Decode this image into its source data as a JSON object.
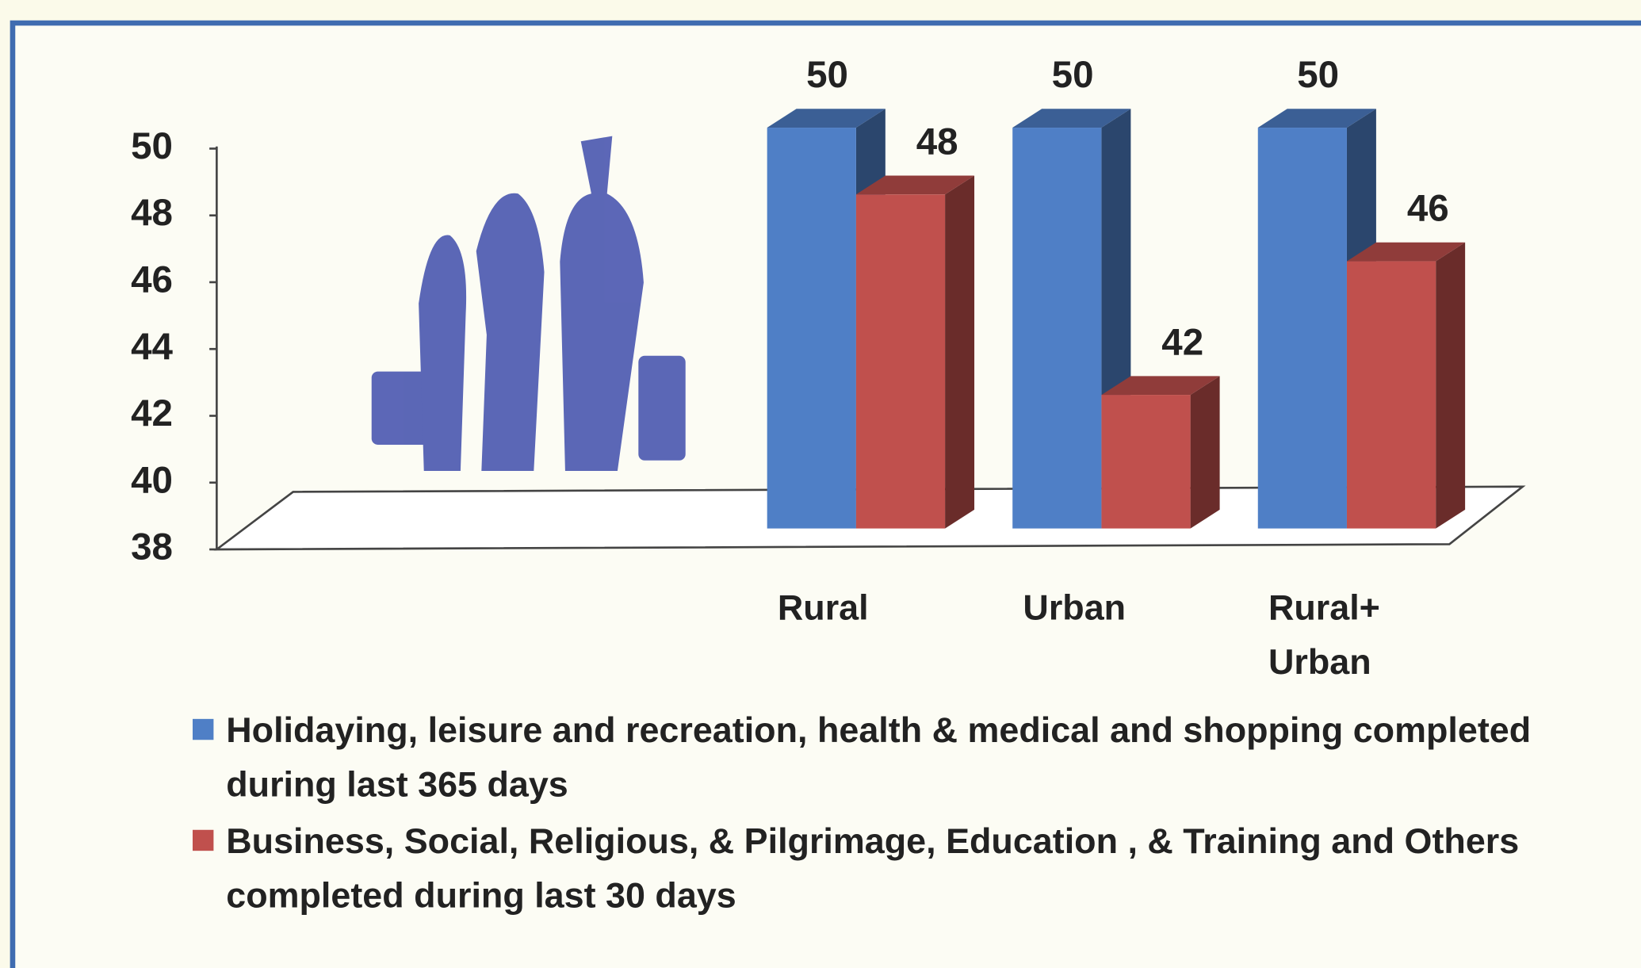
{
  "chart_data": {
    "type": "bar3d",
    "categories": [
      "Rural",
      "Urban",
      "Rural+ Urban"
    ],
    "series": [
      {
        "name": "Holidaying, leisure and recreation, health & medical and shopping completed during last 365 days",
        "color": "#4f7fc6",
        "values": [
          50,
          50,
          50
        ]
      },
      {
        "name": "Business,  Social,  Religious, & Pilgrimage, Education , & Training and Others  completed during last 30 days",
        "color": "#c0504d",
        "values": [
          48,
          42,
          46
        ]
      }
    ],
    "ylim": [
      38,
      50
    ],
    "yticks": [
      38,
      40,
      42,
      44,
      46,
      48,
      50
    ]
  }
}
